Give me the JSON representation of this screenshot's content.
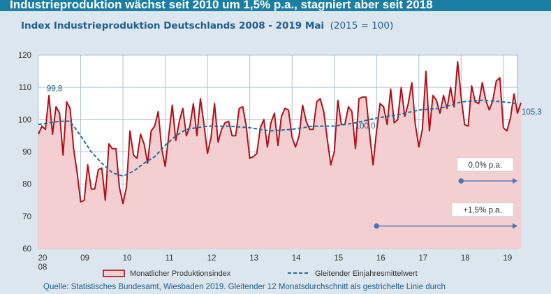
{
  "banner": "Industrieproduktion wächst seit 2010 um 1,5% p.a., stagniert aber seit 2018",
  "subtitle": {
    "bold": "Index Industrieproduktion Deutschlands 2008 - 2019 Mai",
    "normal": "(2015 = 100)"
  },
  "source": "Quelle: Statistisches Bundesamt, Wiesbaden 2019. Gleitender 12 Monatsdurchschnitt als gestrichelte Linie durch",
  "colors": {
    "monthly_line": "#b0101a",
    "area_fill": "#f3cfd1",
    "moving_avg": "#1f6e9e",
    "arrow": "#4a73b8",
    "label_text": "#1f5f8b"
  },
  "chart_data": {
    "type": "line",
    "xlabel": "",
    "ylabel": "",
    "ylim": [
      60,
      120
    ],
    "yticks": [
      60,
      70,
      80,
      90,
      100,
      110,
      120
    ],
    "xticks": [
      {
        "year": 2008,
        "label": "20",
        "label2": "08"
      },
      {
        "year": 2009,
        "label": "09"
      },
      {
        "year": 2010,
        "label": "10"
      },
      {
        "year": 2011,
        "label": "11"
      },
      {
        "year": 2012,
        "label": "12"
      },
      {
        "year": 2013,
        "label": "13"
      },
      {
        "year": 2014,
        "label": "14"
      },
      {
        "year": 2015,
        "label": "15"
      },
      {
        "year": 2016,
        "label": "16"
      },
      {
        "year": 2017,
        "label": "17"
      },
      {
        "year": 2018,
        "label": "18"
      },
      {
        "year": 2019,
        "label": "19"
      }
    ],
    "grid": true,
    "start": "2008-01",
    "series": [
      {
        "name": "Monatlicher Produktionsindex",
        "values": [
          95.5,
          98,
          97,
          107.5,
          95.5,
          104,
          102,
          89,
          105.5,
          103.5,
          91,
          83.5,
          74.5,
          75,
          86,
          78.5,
          78.5,
          84.5,
          85,
          75,
          92.5,
          91,
          91,
          79,
          74,
          79,
          96.5,
          89,
          88,
          95.5,
          92.5,
          86.5,
          96.5,
          98,
          102.5,
          91,
          85.5,
          95,
          104.5,
          93.5,
          99.5,
          103.5,
          95,
          98,
          105,
          95,
          106.5,
          98.5,
          89.5,
          94.5,
          105,
          93,
          97,
          99,
          99.5,
          95,
          95,
          103.5,
          104,
          98,
          88,
          88.5,
          89.5,
          97.5,
          100,
          91.5,
          99,
          102,
          92,
          101,
          103.5,
          103,
          94.5,
          91.5,
          95,
          104.5,
          99.5,
          97,
          97,
          105.5,
          106.5,
          102.5,
          94,
          86,
          90,
          106,
          98.5,
          98.5,
          104,
          102.5,
          91,
          106.5,
          107,
          107,
          96,
          86,
          96.5,
          105,
          104,
          98.5,
          109.5,
          99,
          100,
          110,
          101,
          105,
          111.5,
          98.5,
          91.5,
          97,
          115,
          96.5,
          107.5,
          106,
          102,
          107.5,
          103.5,
          110,
          104,
          118,
          107,
          98.5,
          98,
          110.5,
          105.5,
          105,
          111.5,
          106,
          103,
          106,
          112,
          113,
          97.5,
          96.5,
          100.5,
          108,
          102,
          105.3
        ],
        "labels": [
          {
            "text": "99,8",
            "index": 3
          },
          {
            "text": "100,0",
            "index": 94
          },
          {
            "text": "105,3",
            "index": 136
          }
        ]
      },
      {
        "name": "Gleitender Einjahresmittelwert",
        "points": [
          [
            0,
            98.5
          ],
          [
            6,
            99.5
          ],
          [
            9,
            99.5
          ],
          [
            12,
            95
          ],
          [
            15,
            90
          ],
          [
            18,
            86.5
          ],
          [
            21,
            83.5
          ],
          [
            24,
            82.5
          ],
          [
            27,
            84
          ],
          [
            30,
            86.5
          ],
          [
            33,
            88.5
          ],
          [
            36,
            92
          ],
          [
            39,
            95
          ],
          [
            42,
            97
          ],
          [
            48,
            98
          ],
          [
            54,
            98
          ],
          [
            60,
            97.5
          ],
          [
            66,
            96.5
          ],
          [
            72,
            97
          ],
          [
            78,
            98
          ],
          [
            84,
            98
          ],
          [
            90,
            99
          ],
          [
            96,
            100.5
          ],
          [
            102,
            101.5
          ],
          [
            108,
            103
          ],
          [
            114,
            103.5
          ],
          [
            120,
            105.5
          ],
          [
            126,
            106
          ],
          [
            132,
            105.5
          ],
          [
            136,
            105
          ]
        ]
      }
    ],
    "annotations": [
      {
        "text": "0,0% p.a.",
        "from_year": 2018,
        "to_year": 2019.45,
        "y": 81
      },
      {
        "text": "+1,5% p.a.",
        "from_year": 2016,
        "to_year": 2019.45,
        "y": 67
      }
    ]
  }
}
